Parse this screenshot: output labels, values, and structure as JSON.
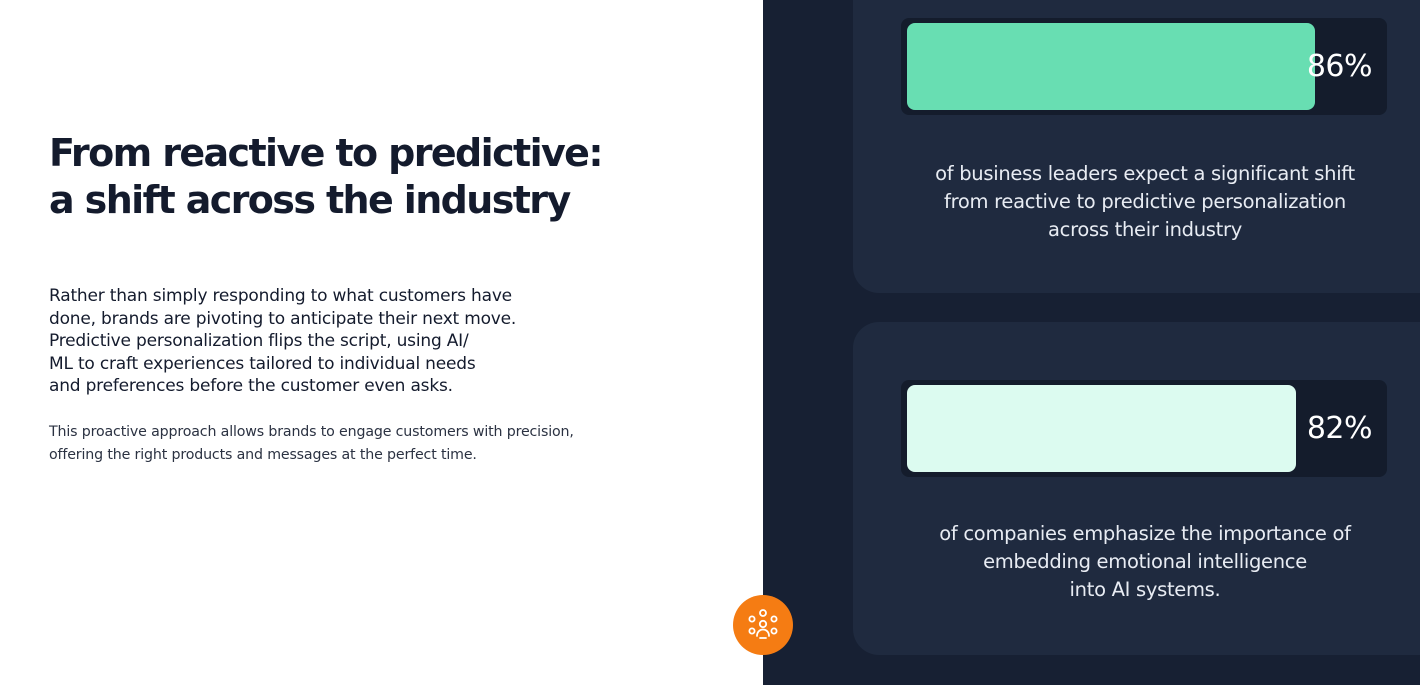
{
  "content": {
    "title_lines": [
      "From reactive to predictive:",
      "a shift across the industry"
    ],
    "lead_lines": [
      "Rather than simply responding to what customers have",
      "done, brands are pivoting to anticipate their next move.",
      "Predictive personalization flips the script, using AI/",
      "ML to craft experiences tailored to individual needs",
      "and preferences before the customer even asks."
    ],
    "body_lines": [
      "This proactive approach allows brands to engage customers with precision,",
      "offering the right products and messages at the perfect time."
    ]
  },
  "stats": [
    {
      "value_label": "86%",
      "percent": 86,
      "bar_color": "#68deb2",
      "caption_lines": [
        "of business leaders expect a significant shift",
        "from reactive to predictive personalization",
        "across their industry"
      ]
    },
    {
      "value_label": "82%",
      "percent": 82,
      "bar_color": "#dcfbf0",
      "caption_lines": [
        "of companies emphasize the importance of",
        "embedding emotional intelligence",
        "into AI systems."
      ]
    }
  ],
  "colors": {
    "accent": "#f57c13",
    "dark_panel": "#172033",
    "card": "#1f2a3f",
    "heading": "#141b2d"
  },
  "icons": {
    "fab": "network-people-icon"
  }
}
